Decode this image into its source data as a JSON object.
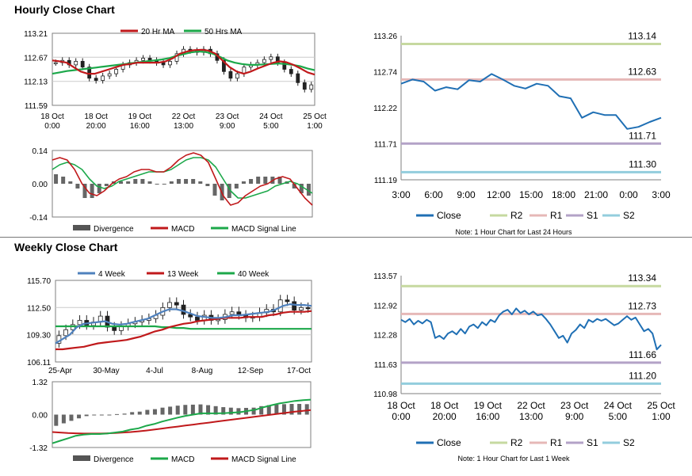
{
  "sections": {
    "hourly_title": "Hourly Close Chart",
    "weekly_title": "Weekly Close Chart"
  },
  "colors": {
    "red": "#c0191b",
    "green": "#1ca84a",
    "blue": "#4f81bd",
    "close": "#1f6fb4",
    "r2": "#c6d9a0",
    "r1": "#e6b8b7",
    "s1": "#b3a2c7",
    "s2": "#93cddd",
    "divergence": "#666666",
    "axis": "#7f7f7f"
  },
  "chart_data": [
    {
      "id": "hourly_candle",
      "type": "candlestick",
      "title": "",
      "legend": [
        "20 Hr MA",
        "50 Hrs MA"
      ],
      "legend_placement": "top",
      "ylim": [
        111.59,
        113.21
      ],
      "y_ticks": [
        "113.21",
        "112.67",
        "112.13",
        "111.59"
      ],
      "x_ticks": [
        [
          "18 Oct",
          "0:00"
        ],
        [
          "18 Oct",
          "20:00"
        ],
        [
          "19 Oct",
          "16:00"
        ],
        [
          "22 Oct",
          "13:00"
        ],
        [
          "23 Oct",
          "9:00"
        ],
        [
          "24 Oct",
          "5:00"
        ],
        [
          "25 Oct",
          "1:00"
        ]
      ],
      "close": [
        112.55,
        112.6,
        112.5,
        112.58,
        112.45,
        112.2,
        112.15,
        112.25,
        112.3,
        112.4,
        112.5,
        112.55,
        112.6,
        112.65,
        112.6,
        112.55,
        112.5,
        112.58,
        112.75,
        112.85,
        112.82,
        112.78,
        112.85,
        112.75,
        112.6,
        112.35,
        112.2,
        112.3,
        112.45,
        112.5,
        112.55,
        112.62,
        112.68,
        112.55,
        112.4,
        112.3,
        112.1,
        111.95,
        112.05
      ],
      "ma20": [
        112.6,
        112.58,
        112.55,
        112.45,
        112.35,
        112.3,
        112.3,
        112.35,
        112.4,
        112.45,
        112.5,
        112.52,
        112.55,
        112.55,
        112.55,
        112.55,
        112.58,
        112.65,
        112.75,
        112.8,
        112.83,
        112.84,
        112.82,
        112.75,
        112.6,
        112.45,
        112.35,
        112.3,
        112.35,
        112.42,
        112.48,
        112.54,
        112.58,
        112.56,
        112.5,
        112.42,
        112.33,
        112.28
      ],
      "ma50": [
        112.3,
        112.33,
        112.36,
        112.38,
        112.4,
        112.42,
        112.44,
        112.46,
        112.48,
        112.5,
        112.52,
        112.54,
        112.56,
        112.58,
        112.6,
        112.62,
        112.65,
        112.7,
        112.74,
        112.78,
        112.8,
        112.79,
        112.75,
        112.68,
        112.6,
        112.55,
        112.52,
        112.5,
        112.5,
        112.51,
        112.52,
        112.53,
        112.52,
        112.5,
        112.47,
        112.42,
        112.38
      ]
    },
    {
      "id": "hourly_macd",
      "type": "line",
      "ylim": [
        -0.14,
        0.14
      ],
      "y_ticks": [
        "0.14",
        "0.00",
        "-0.14"
      ],
      "legend": [
        "Divergence",
        "MACD",
        "MACD Signal Line"
      ],
      "macd": [
        0.1,
        0.11,
        0.1,
        0.06,
        0.0,
        -0.04,
        -0.05,
        -0.03,
        0.0,
        0.02,
        0.03,
        0.05,
        0.06,
        0.06,
        0.05,
        0.05,
        0.07,
        0.1,
        0.12,
        0.13,
        0.12,
        0.09,
        0.02,
        -0.05,
        -0.09,
        -0.08,
        -0.05,
        -0.03,
        -0.01,
        0.0,
        0.02,
        0.03,
        0.02,
        -0.02,
        -0.06,
        -0.09
      ],
      "signal": [
        0.06,
        0.08,
        0.09,
        0.08,
        0.06,
        0.02,
        -0.01,
        -0.02,
        -0.01,
        0.01,
        0.02,
        0.03,
        0.04,
        0.05,
        0.05,
        0.05,
        0.06,
        0.08,
        0.1,
        0.11,
        0.11,
        0.1,
        0.07,
        0.02,
        -0.03,
        -0.06,
        -0.06,
        -0.05,
        -0.04,
        -0.03,
        -0.01,
        0.0,
        0.01,
        0.0,
        -0.02,
        -0.04
      ],
      "divergence": [
        0.04,
        0.03,
        0.01,
        -0.02,
        -0.06,
        -0.06,
        -0.04,
        -0.01,
        0.01,
        0.01,
        0.01,
        0.02,
        0.02,
        0.01,
        0.0,
        0.0,
        0.01,
        0.02,
        0.02,
        0.02,
        0.01,
        -0.01,
        -0.05,
        -0.07,
        -0.06,
        -0.02,
        0.01,
        0.02,
        0.03,
        0.03,
        0.03,
        0.03,
        0.01,
        -0.02,
        -0.04,
        -0.05
      ]
    },
    {
      "id": "hourly_24h",
      "type": "line",
      "ylim": [
        111.19,
        113.26
      ],
      "y_ticks": [
        "113.26",
        "112.74",
        "112.22",
        "111.71",
        "111.19"
      ],
      "x_ticks": [
        "3:00",
        "6:00",
        "9:00",
        "12:00",
        "15:00",
        "18:00",
        "21:00",
        "0:00",
        "3:00"
      ],
      "close": [
        112.57,
        112.63,
        112.6,
        112.47,
        112.52,
        112.49,
        112.62,
        112.6,
        112.71,
        112.63,
        112.54,
        112.5,
        112.57,
        112.54,
        112.39,
        112.36,
        112.08,
        112.16,
        112.12,
        112.12,
        111.92,
        111.95,
        112.02,
        112.08
      ],
      "levels": [
        {
          "name": "R2",
          "value": 113.14,
          "label": "113.14"
        },
        {
          "name": "R1",
          "value": 112.63,
          "label": "112.63"
        },
        {
          "name": "S1",
          "value": 111.71,
          "label": "111.71"
        },
        {
          "name": "S2",
          "value": 111.3,
          "label": "111.30"
        }
      ],
      "legend": [
        "Close",
        "R2",
        "R1",
        "S1",
        "S2"
      ],
      "note": "Note: 1 Hour Chart for Last 24 Hours"
    },
    {
      "id": "weekly_candle",
      "type": "candlestick",
      "ylim": [
        106.11,
        115.7
      ],
      "y_ticks": [
        "115.70",
        "112.50",
        "109.30",
        "106.11"
      ],
      "x_ticks": [
        "25-Apr",
        "30-May",
        "4-Jul",
        "8-Aug",
        "12-Sep",
        "17-Oct"
      ],
      "legend": [
        "4 Week",
        "13 Week",
        "40 Week"
      ],
      "close": [
        109.2,
        109.9,
        110.5,
        111.0,
        110.4,
        110.8,
        111.5,
        110.2,
        109.8,
        110.3,
        110.6,
        110.8,
        111.0,
        111.2,
        111.6,
        112.5,
        113.1,
        112.8,
        111.7,
        111.4,
        111.0,
        111.6,
        111.0,
        111.1,
        111.7,
        112.0,
        111.6,
        111.3,
        111.4,
        111.9,
        112.3,
        112.0,
        113.4,
        113.2,
        112.2,
        112.5,
        112.4
      ],
      "ma4": [
        108.3,
        108.8,
        109.3,
        110.2,
        110.6,
        110.7,
        110.8,
        110.9,
        110.6,
        110.5,
        110.6,
        110.8,
        111.0,
        111.2,
        111.6,
        112.0,
        112.3,
        112.3,
        112.1,
        111.8,
        111.5,
        111.4,
        111.3,
        111.3,
        111.4,
        111.6,
        111.6,
        111.7,
        111.8,
        111.9,
        112.0,
        112.3,
        112.7,
        112.9,
        112.8,
        112.8,
        112.7
      ],
      "ma13": [
        107.6,
        107.6,
        107.7,
        107.8,
        107.9,
        108.1,
        108.3,
        108.4,
        108.5,
        108.6,
        108.7,
        108.9,
        109.1,
        109.4,
        109.7,
        109.9,
        110.2,
        110.4,
        110.6,
        110.7,
        110.9,
        111.0,
        111.1,
        111.2,
        111.3,
        111.3,
        111.3,
        111.4,
        111.4,
        111.4,
        111.6,
        111.7,
        111.9,
        112.0,
        112.0,
        112.0,
        112.1
      ],
      "ma40": [
        110.3,
        110.3,
        110.3,
        110.3,
        110.3,
        110.3,
        110.3,
        110.3,
        110.3,
        110.3,
        110.3,
        110.3,
        110.3,
        110.3,
        110.3,
        110.2,
        110.2,
        110.1,
        110.1,
        110.0,
        110.0,
        110.0,
        110.0,
        110.0,
        110.0,
        110.0,
        110.0,
        110.0,
        110.0,
        110.0,
        110.0,
        110.0,
        110.0,
        110.0,
        110.0,
        110.0,
        110.0
      ]
    },
    {
      "id": "weekly_macd",
      "type": "line",
      "ylim": [
        -1.32,
        1.32
      ],
      "y_ticks": [
        "1.32",
        "0.00",
        "-1.32"
      ],
      "legend": [
        "Divergence",
        "MACD",
        "MACD Signal Line"
      ],
      "macd": [
        -1.15,
        -1.05,
        -0.95,
        -0.85,
        -0.8,
        -0.78,
        -0.78,
        -0.76,
        -0.72,
        -0.68,
        -0.6,
        -0.55,
        -0.45,
        -0.38,
        -0.28,
        -0.2,
        -0.12,
        -0.05,
        0.0,
        0.05,
        0.05,
        0.05,
        0.06,
        0.08,
        0.1,
        0.15,
        0.2,
        0.3,
        0.38,
        0.45,
        0.5,
        0.55,
        0.58,
        0.6
      ],
      "signal": [
        -0.7,
        -0.72,
        -0.74,
        -0.75,
        -0.76,
        -0.76,
        -0.76,
        -0.75,
        -0.74,
        -0.72,
        -0.7,
        -0.67,
        -0.64,
        -0.6,
        -0.56,
        -0.52,
        -0.48,
        -0.44,
        -0.4,
        -0.36,
        -0.32,
        -0.28,
        -0.24,
        -0.2,
        -0.16,
        -0.12,
        -0.08,
        -0.04,
        0.0,
        0.04,
        0.08,
        0.12,
        0.15,
        0.18
      ],
      "divergence": [
        -0.45,
        -0.35,
        -0.25,
        -0.15,
        -0.06,
        -0.03,
        -0.02,
        -0.02,
        0.02,
        0.04,
        0.1,
        0.12,
        0.19,
        0.22,
        0.28,
        0.32,
        0.36,
        0.39,
        0.4,
        0.41,
        0.38,
        0.34,
        0.3,
        0.28,
        0.26,
        0.27,
        0.28,
        0.34,
        0.38,
        0.4,
        0.42,
        0.43,
        0.43,
        0.42
      ]
    },
    {
      "id": "weekly_1w",
      "type": "line",
      "ylim": [
        110.98,
        113.57
      ],
      "y_ticks": [
        "113.57",
        "112.92",
        "112.28",
        "111.63",
        "110.98"
      ],
      "x_ticks": [
        [
          "18 Oct",
          "0:00"
        ],
        [
          "18 Oct",
          "20:00"
        ],
        [
          "19 Oct",
          "16:00"
        ],
        [
          "22 Oct",
          "13:00"
        ],
        [
          "23 Oct",
          "9:00"
        ],
        [
          "24 Oct",
          "5:00"
        ],
        [
          "25 Oct",
          "1:00"
        ]
      ],
      "close": [
        112.6,
        112.55,
        112.62,
        112.5,
        112.58,
        112.52,
        112.6,
        112.55,
        112.2,
        112.25,
        112.18,
        112.3,
        112.35,
        112.28,
        112.4,
        112.3,
        112.45,
        112.5,
        112.42,
        112.55,
        112.48,
        112.6,
        112.55,
        112.7,
        112.78,
        112.82,
        112.72,
        112.85,
        112.75,
        112.8,
        112.72,
        112.78,
        112.7,
        112.72,
        112.62,
        112.5,
        112.35,
        112.2,
        112.25,
        112.1,
        112.3,
        112.38,
        112.5,
        112.42,
        112.6,
        112.55,
        112.62,
        112.58,
        112.62,
        112.55,
        112.48,
        112.52,
        112.6,
        112.68,
        112.6,
        112.65,
        112.5,
        112.35,
        112.4,
        112.3,
        111.95,
        112.05
      ],
      "levels": [
        {
          "name": "R2",
          "value": 113.34,
          "label": "113.34"
        },
        {
          "name": "R1",
          "value": 112.73,
          "label": "112.73"
        },
        {
          "name": "S1",
          "value": 111.66,
          "label": "111.66"
        },
        {
          "name": "S2",
          "value": 111.2,
          "label": "111.20"
        }
      ],
      "legend": [
        "Close",
        "R2",
        "R1",
        "S1",
        "S2"
      ],
      "note": "Note: 1 Hour Chart for Last 1 Week"
    }
  ]
}
